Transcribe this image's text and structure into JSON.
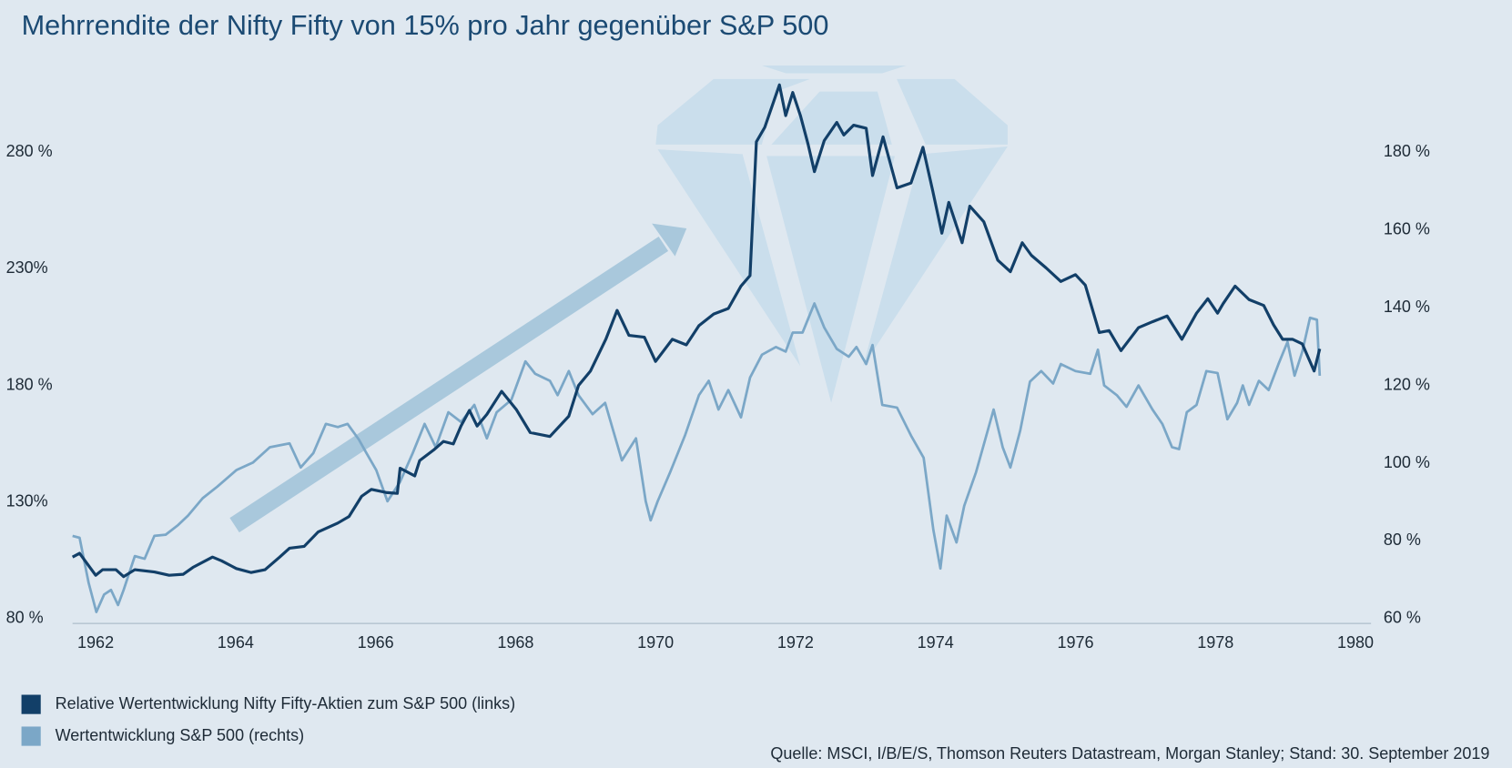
{
  "chart_data": {
    "type": "line",
    "title": "Mehrrendite der Nifty Fifty von 15% pro Jahr gegenüber S&P 500",
    "source": "Quelle: MSCI, I/B/E/S, Thomson Reuters Datastream, Morgan Stanley; Stand: 30. September 2019",
    "xlim": [
      1961.67,
      1980.25
    ],
    "xticks": [
      1962,
      1964,
      1966,
      1968,
      1970,
      1972,
      1974,
      1976,
      1978,
      1980
    ],
    "ylim": [
      80,
      280
    ],
    "yticks": [
      {
        "value": 80,
        "label": "80 %"
      },
      {
        "value": 130,
        "label": "130%"
      },
      {
        "value": 180,
        "label": "180 %"
      },
      {
        "value": 230,
        "label": "230%"
      },
      {
        "value": 280,
        "label": "280 %"
      }
    ],
    "y2lim": [
      60,
      180
    ],
    "y2ticks": [
      {
        "value": 60,
        "label": "60 %"
      },
      {
        "value": 80,
        "label": "80 %"
      },
      {
        "value": 100,
        "label": "100 %"
      },
      {
        "value": 120,
        "label": "120 %"
      },
      {
        "value": 140,
        "label": "140 %"
      },
      {
        "value": 160,
        "label": "160 %"
      },
      {
        "value": 180,
        "label": "180 %"
      }
    ],
    "series": [
      {
        "name": "Relative Wertentwicklung Nifty Fifty-Aktien zum S&P 500 (links)",
        "color": "#123f68",
        "axis": "y",
        "x": [
          1961.67,
          1961.77,
          1962.0,
          1962.1,
          1962.29,
          1962.4,
          1962.56,
          1962.84,
          1963.05,
          1963.25,
          1963.39,
          1963.67,
          1963.8,
          1964.01,
          1964.22,
          1964.42,
          1964.63,
          1964.77,
          1964.98,
          1965.18,
          1965.46,
          1965.62,
          1965.8,
          1965.94,
          1966.15,
          1966.31,
          1966.35,
          1966.56,
          1966.63,
          1966.83,
          1966.97,
          1967.11,
          1967.22,
          1967.34,
          1967.45,
          1967.59,
          1967.8,
          1968.01,
          1968.21,
          1968.49,
          1968.76,
          1968.9,
          1969.07,
          1969.29,
          1969.45,
          1969.62,
          1969.84,
          1970.0,
          1970.24,
          1970.44,
          1970.62,
          1970.83,
          1971.04,
          1971.22,
          1971.35,
          1971.44,
          1971.56,
          1971.77,
          1971.86,
          1971.96,
          1972.07,
          1972.18,
          1972.27,
          1972.41,
          1972.59,
          1972.69,
          1972.83,
          1973.01,
          1973.1,
          1973.25,
          1973.45,
          1973.65,
          1973.82,
          1973.96,
          1974.09,
          1974.19,
          1974.38,
          1974.49,
          1974.69,
          1974.89,
          1975.07,
          1975.24,
          1975.37,
          1975.58,
          1975.79,
          1976.0,
          1976.14,
          1976.34,
          1976.48,
          1976.65,
          1976.9,
          1977.1,
          1977.31,
          1977.52,
          1977.73,
          1977.89,
          1978.03,
          1978.11,
          1978.28,
          1978.48,
          1978.69,
          1978.83,
          1978.96,
          1979.1,
          1979.24,
          1979.41,
          1979.49
        ],
        "values": [
          106.4,
          108,
          98.6,
          101,
          101,
          98,
          101,
          100,
          98.6,
          99,
          102,
          106.4,
          104.8,
          101.5,
          99.8,
          101,
          106.4,
          110.2,
          111,
          117.2,
          121,
          123.8,
          132.5,
          135.4,
          134.1,
          133.7,
          144.5,
          141.2,
          147.8,
          152.3,
          156,
          154.9,
          162.6,
          169.3,
          162.6,
          167.6,
          177.5,
          169.7,
          159.8,
          158.1,
          166.8,
          180,
          186.2,
          199.8,
          212.2,
          201.5,
          200.7,
          190.3,
          199.8,
          197.4,
          205.6,
          210.6,
          213,
          222.6,
          227.1,
          284.5,
          290.7,
          308.9,
          295.7,
          305.6,
          295.7,
          283.3,
          271.7,
          285,
          292.8,
          287.4,
          291.6,
          290.3,
          270,
          286.6,
          264.7,
          266.8,
          282.1,
          263.5,
          245.3,
          258.5,
          241.2,
          256.9,
          250.2,
          233.7,
          228.8,
          241.2,
          235.8,
          230.4,
          224.6,
          227.5,
          223,
          202.7,
          203.5,
          194.9,
          204.8,
          207.3,
          209.8,
          199.8,
          211,
          217.2,
          211,
          215.1,
          222.6,
          216.8,
          214.3,
          206,
          199.8,
          199.8,
          197.8,
          186.2,
          195.7
        ]
      },
      {
        "name": "Wertentwicklung S&P 500 (rechts)",
        "color": "#7ba7c7",
        "axis": "y2",
        "x": [
          1961.67,
          1961.77,
          1961.9,
          1962.01,
          1962.12,
          1962.22,
          1962.32,
          1962.4,
          1962.56,
          1962.7,
          1962.84,
          1963.0,
          1963.18,
          1963.32,
          1963.53,
          1963.74,
          1964.01,
          1964.25,
          1964.49,
          1964.77,
          1964.93,
          1965.11,
          1965.29,
          1965.46,
          1965.6,
          1965.76,
          1965.87,
          1966.01,
          1966.17,
          1966.35,
          1966.53,
          1966.7,
          1966.86,
          1967.04,
          1967.22,
          1967.41,
          1967.59,
          1967.73,
          1967.94,
          1968.14,
          1968.28,
          1968.49,
          1968.6,
          1968.76,
          1968.9,
          1969.1,
          1969.28,
          1969.52,
          1969.72,
          1969.86,
          1969.93,
          1970.03,
          1970.21,
          1970.42,
          1970.62,
          1970.76,
          1970.9,
          1971.04,
          1971.22,
          1971.35,
          1971.52,
          1971.72,
          1971.86,
          1971.96,
          1972.1,
          1972.27,
          1972.41,
          1972.59,
          1972.76,
          1972.87,
          1973.01,
          1973.1,
          1973.24,
          1973.45,
          1973.65,
          1973.83,
          1973.97,
          1974.07,
          1974.16,
          1974.3,
          1974.41,
          1974.58,
          1974.83,
          1974.96,
          1975.07,
          1975.21,
          1975.35,
          1975.51,
          1975.68,
          1975.79,
          1976.0,
          1976.21,
          1976.32,
          1976.41,
          1976.59,
          1976.73,
          1976.9,
          1977.1,
          1977.24,
          1977.38,
          1977.48,
          1977.59,
          1977.73,
          1977.87,
          1978.03,
          1978.17,
          1978.31,
          1978.39,
          1978.48,
          1978.62,
          1978.76,
          1978.9,
          1979.03,
          1979.13,
          1979.24,
          1979.35,
          1979.45,
          1979.49
        ],
        "values": [
          81.3,
          80.8,
          69.2,
          61.7,
          66.2,
          67.4,
          63.5,
          67.4,
          76.1,
          75.4,
          81.3,
          81.6,
          84.1,
          86.5,
          91,
          94,
          98.2,
          100.2,
          104.1,
          105.1,
          98.9,
          102.6,
          110.1,
          109.3,
          110.1,
          106.1,
          102.6,
          98.2,
          90.2,
          95.2,
          102.6,
          110.1,
          104.1,
          113.1,
          110.6,
          115,
          106.4,
          113.1,
          116.3,
          126.2,
          123,
          121.2,
          117.5,
          123.7,
          117.5,
          112.6,
          115.5,
          100.7,
          106.4,
          90.2,
          85.3,
          90.2,
          97.7,
          107.1,
          117.5,
          121.2,
          113.8,
          118.8,
          111.8,
          122,
          127.9,
          129.9,
          128.7,
          133.6,
          133.6,
          141.1,
          134.9,
          129.4,
          127.4,
          129.9,
          125.5,
          130.4,
          115,
          114.3,
          107.1,
          101.4,
          82.8,
          72.9,
          86.5,
          79.6,
          89,
          97.7,
          113.8,
          104.1,
          98.9,
          108.4,
          121,
          123.7,
          120.5,
          125.5,
          123.7,
          123,
          129.2,
          120,
          117.5,
          114.5,
          120,
          113.8,
          110.1,
          104.1,
          103.6,
          113.1,
          115,
          123.7,
          123.2,
          111.3,
          115.5,
          120,
          115,
          121.2,
          118.8,
          125.5,
          131.2,
          122.5,
          128.7,
          137.4,
          136.9,
          122.5
        ]
      }
    ]
  }
}
